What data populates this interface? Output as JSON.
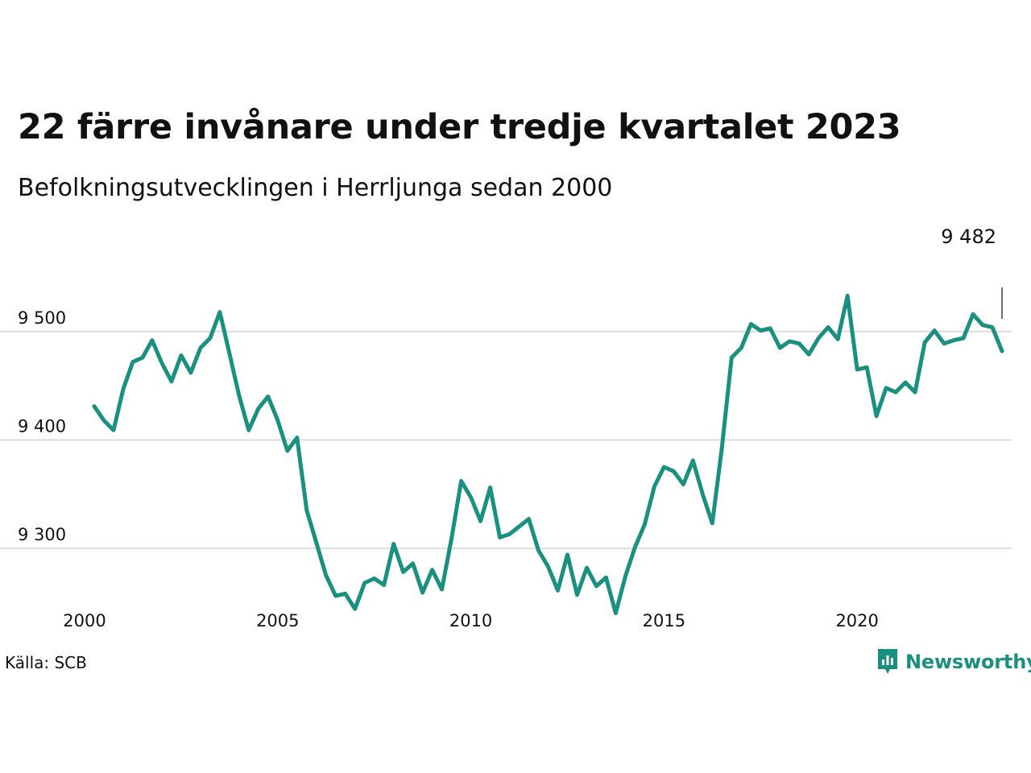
{
  "header": {
    "title": "22 färre invånare under tredje kvartalet 2023",
    "subtitle": "Befolkningsutvecklingen i Herrljunga sedan 2000"
  },
  "footer": {
    "source": "Källa: SCB",
    "brand": "Newsworthy"
  },
  "colors": {
    "line": "#1a9080",
    "grid": "#dddddd",
    "brand": "#1a8f7e"
  },
  "chart_data": {
    "type": "line",
    "title": "22 färre invånare under tredje kvartalet 2023",
    "subtitle": "Befolkningsutvecklingen i Herrljunga sedan 2000",
    "xlabel": "",
    "ylabel": "",
    "grid": true,
    "xlim": [
      2000.0,
      2024.0
    ],
    "ylim": [
      9230,
      9540
    ],
    "x_ticks": [
      2000,
      2005,
      2010,
      2015,
      2020
    ],
    "x_tick_labels": [
      "2000",
      "2005",
      "2010",
      "2015",
      "2020"
    ],
    "y_ticks": [
      9300,
      9400,
      9500
    ],
    "y_tick_labels": [
      "9 300",
      "9 400",
      "9 500"
    ],
    "last_value_label": "9 482",
    "series": [
      {
        "values": [
          [
            2000.25,
            9431
          ],
          [
            2000.5,
            9418
          ],
          [
            2000.75,
            9409
          ],
          [
            2001.0,
            9447
          ],
          [
            2001.25,
            9472
          ],
          [
            2001.5,
            9476
          ],
          [
            2001.75,
            9492
          ],
          [
            2002.0,
            9471
          ],
          [
            2002.25,
            9454
          ],
          [
            2002.5,
            9478
          ],
          [
            2002.75,
            9462
          ],
          [
            2003.0,
            9485
          ],
          [
            2003.25,
            9494
          ],
          [
            2003.5,
            9518
          ],
          [
            2003.75,
            9480
          ],
          [
            2004.0,
            9441
          ],
          [
            2004.25,
            9409
          ],
          [
            2004.5,
            9429
          ],
          [
            2004.75,
            9440
          ],
          [
            2005.0,
            9418
          ],
          [
            2005.25,
            9390
          ],
          [
            2005.5,
            9402
          ],
          [
            2005.75,
            9335
          ],
          [
            2006.0,
            9305
          ],
          [
            2006.25,
            9275
          ],
          [
            2006.5,
            9256
          ],
          [
            2006.75,
            9258
          ],
          [
            2007.0,
            9244
          ],
          [
            2007.25,
            9268
          ],
          [
            2007.5,
            9272
          ],
          [
            2007.75,
            9266
          ],
          [
            2008.0,
            9304
          ],
          [
            2008.25,
            9278
          ],
          [
            2008.5,
            9286
          ],
          [
            2008.75,
            9259
          ],
          [
            2009.0,
            9280
          ],
          [
            2009.25,
            9262
          ],
          [
            2009.5,
            9309
          ],
          [
            2009.75,
            9362
          ],
          [
            2010.0,
            9347
          ],
          [
            2010.25,
            9325
          ],
          [
            2010.5,
            9356
          ],
          [
            2010.75,
            9310
          ],
          [
            2011.0,
            9313
          ],
          [
            2011.25,
            9320
          ],
          [
            2011.5,
            9327
          ],
          [
            2011.75,
            9298
          ],
          [
            2012.0,
            9283
          ],
          [
            2012.25,
            9261
          ],
          [
            2012.5,
            9294
          ],
          [
            2012.75,
            9257
          ],
          [
            2013.0,
            9282
          ],
          [
            2013.25,
            9265
          ],
          [
            2013.5,
            9273
          ],
          [
            2013.75,
            9240
          ],
          [
            2014.0,
            9274
          ],
          [
            2014.25,
            9301
          ],
          [
            2014.5,
            9322
          ],
          [
            2014.75,
            9357
          ],
          [
            2015.0,
            9375
          ],
          [
            2015.25,
            9371
          ],
          [
            2015.5,
            9359
          ],
          [
            2015.75,
            9381
          ],
          [
            2016.0,
            9350
          ],
          [
            2016.25,
            9323
          ],
          [
            2016.5,
            9393
          ],
          [
            2016.75,
            9476
          ],
          [
            2017.0,
            9485
          ],
          [
            2017.25,
            9507
          ],
          [
            2017.5,
            9501
          ],
          [
            2017.75,
            9503
          ],
          [
            2018.0,
            9485
          ],
          [
            2018.25,
            9491
          ],
          [
            2018.5,
            9489
          ],
          [
            2018.75,
            9479
          ],
          [
            2019.0,
            9494
          ],
          [
            2019.25,
            9504
          ],
          [
            2019.5,
            9493
          ],
          [
            2019.75,
            9533
          ],
          [
            2020.0,
            9465
          ],
          [
            2020.25,
            9467
          ],
          [
            2020.5,
            9422
          ],
          [
            2020.75,
            9448
          ],
          [
            2021.0,
            9444
          ],
          [
            2021.25,
            9453
          ],
          [
            2021.5,
            9444
          ],
          [
            2021.75,
            9490
          ],
          [
            2022.0,
            9501
          ],
          [
            2022.25,
            9489
          ],
          [
            2022.5,
            9492
          ],
          [
            2022.75,
            9494
          ],
          [
            2023.0,
            9516
          ],
          [
            2023.25,
            9506
          ],
          [
            2023.5,
            9504
          ],
          [
            2023.75,
            9482
          ]
        ]
      }
    ]
  }
}
